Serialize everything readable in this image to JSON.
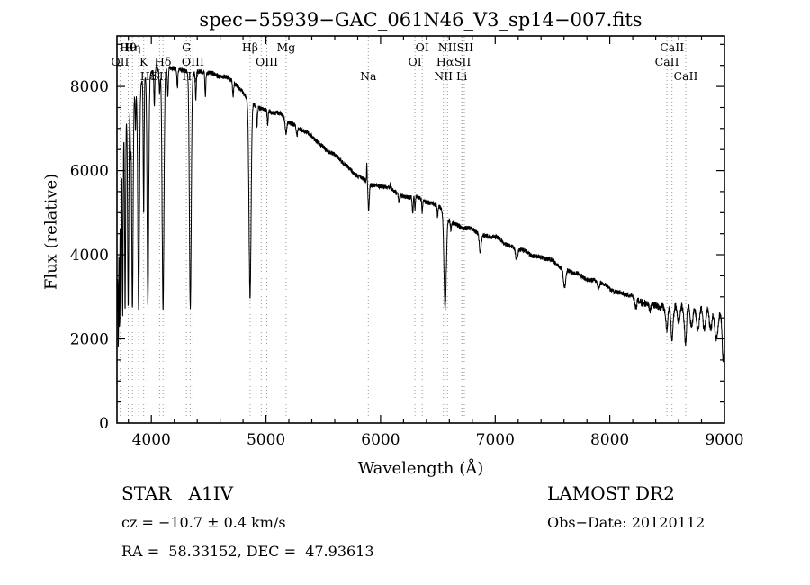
{
  "chart_data": {
    "type": "line",
    "title": "spec−55939−GAC_061N46_V3_sp14−007.fits",
    "xlabel": "Wavelength (Å)",
    "ylabel": "Flux (relative)",
    "xlim": [
      3700,
      9000
    ],
    "ylim": [
      0,
      9200
    ],
    "xticks": [
      4000,
      5000,
      6000,
      7000,
      8000,
      9000
    ],
    "yticks": [
      0,
      2000,
      4000,
      6000,
      8000
    ],
    "x_minor_step": 200,
    "y_minor_step": 500,
    "grid": false,
    "legend": "none",
    "markers": [
      3727,
      3798,
      3835,
      3889,
      3933,
      3970,
      4072,
      4102,
      4305,
      4340,
      4363,
      4861,
      4959,
      5007,
      5175,
      5893,
      6300,
      6363,
      6548,
      6563,
      6583,
      6708,
      6716,
      6731,
      8498,
      8542,
      8662
    ],
    "line_labels": [
      {
        "t": "Hθ",
        "wl": 3798,
        "r": 0
      },
      {
        "t": "Hη",
        "wl": 3835,
        "r": 0
      },
      {
        "t": "G",
        "wl": 4305,
        "r": 0
      },
      {
        "t": "Hβ",
        "wl": 4861,
        "r": 0
      },
      {
        "t": "Mg",
        "wl": 5175,
        "r": 0
      },
      {
        "t": "OI",
        "wl": 6363,
        "r": 0
      },
      {
        "t": "NII",
        "wl": 6583,
        "r": 0
      },
      {
        "t": "SII",
        "wl": 6737,
        "r": 0
      },
      {
        "t": "CaII",
        "wl": 8542,
        "r": 0
      },
      {
        "t": "OII",
        "wl": 3727,
        "r": 1
      },
      {
        "t": "K",
        "wl": 3933,
        "r": 1
      },
      {
        "t": "Hδ",
        "wl": 4102,
        "r": 1
      },
      {
        "t": "OIII",
        "wl": 4363,
        "r": 1
      },
      {
        "t": "OIII",
        "wl": 5007,
        "r": 1
      },
      {
        "t": "OI",
        "wl": 6300,
        "r": 1
      },
      {
        "t": "Hα",
        "wl": 6563,
        "r": 1
      },
      {
        "t": "SII",
        "wl": 6716,
        "r": 1
      },
      {
        "t": "CaII",
        "wl": 8498,
        "r": 1
      },
      {
        "t": "Hε",
        "wl": 3970,
        "r": 2
      },
      {
        "t": "SII",
        "wl": 4072,
        "r": 2
      },
      {
        "t": "Hγ",
        "wl": 4340,
        "r": 2
      },
      {
        "t": "Na",
        "wl": 5893,
        "r": 2
      },
      {
        "t": "NII",
        "wl": 6548,
        "r": 2
      },
      {
        "t": "Li",
        "wl": 6708,
        "r": 2
      },
      {
        "t": "CaII",
        "wl": 8662,
        "r": 2
      }
    ],
    "continuum": [
      [
        3700,
        2600
      ],
      [
        3715,
        5600
      ],
      [
        3760,
        6900
      ],
      [
        3800,
        7400
      ],
      [
        3850,
        7800
      ],
      [
        3900,
        8050
      ],
      [
        3950,
        8200
      ],
      [
        4000,
        8300
      ],
      [
        4100,
        8400
      ],
      [
        4250,
        8420
      ],
      [
        4400,
        8350
      ],
      [
        4550,
        8280
      ],
      [
        4700,
        8120
      ],
      [
        4800,
        7900
      ],
      [
        4900,
        7550
      ],
      [
        5000,
        7450
      ],
      [
        5100,
        7350
      ],
      [
        5200,
        7120
      ],
      [
        5300,
        7000
      ],
      [
        5400,
        6820
      ],
      [
        5500,
        6600
      ],
      [
        5600,
        6350
      ],
      [
        5700,
        6100
      ],
      [
        5800,
        5850
      ],
      [
        5900,
        5680
      ],
      [
        6000,
        5680
      ],
      [
        6100,
        5560
      ],
      [
        6200,
        5380
      ],
      [
        6300,
        5330
      ],
      [
        6400,
        5250
      ],
      [
        6500,
        5200
      ],
      [
        6600,
        4850
      ],
      [
        6700,
        4680
      ],
      [
        6800,
        4560
      ],
      [
        6900,
        4440
      ],
      [
        7000,
        4400
      ],
      [
        7100,
        4280
      ],
      [
        7200,
        4160
      ],
      [
        7300,
        4020
      ],
      [
        7400,
        3920
      ],
      [
        7500,
        3810
      ],
      [
        7600,
        3680
      ],
      [
        7700,
        3570
      ],
      [
        7800,
        3460
      ],
      [
        7900,
        3360
      ],
      [
        8000,
        3150
      ],
      [
        8100,
        3080
      ],
      [
        8200,
        3000
      ],
      [
        8300,
        2900
      ],
      [
        8400,
        2800
      ],
      [
        8500,
        2650
      ],
      [
        8600,
        2560
      ],
      [
        8700,
        2520
      ],
      [
        8800,
        2500
      ],
      [
        8900,
        2480
      ],
      [
        8960,
        2430
      ],
      [
        9000,
        2400
      ]
    ],
    "absorption_lines": [
      [
        3712,
        3200,
        3
      ],
      [
        3722,
        3500,
        3
      ],
      [
        3734,
        3800,
        3.5
      ],
      [
        3750,
        4000,
        3.5
      ],
      [
        3771,
        4300,
        4
      ],
      [
        3798,
        4650,
        5
      ],
      [
        3819,
        1100,
        3
      ],
      [
        3835,
        4950,
        6
      ],
      [
        3862,
        900,
        3
      ],
      [
        3889,
        5250,
        7
      ],
      [
        3933,
        3200,
        4
      ],
      [
        3970,
        5450,
        7
      ],
      [
        4026,
        800,
        4
      ],
      [
        4072,
        550,
        4
      ],
      [
        4102,
        5650,
        8
      ],
      [
        4144,
        650,
        4
      ],
      [
        4227,
        450,
        4
      ],
      [
        4340,
        5600,
        8
      ],
      [
        4388,
        650,
        4
      ],
      [
        4471,
        550,
        4
      ],
      [
        4713,
        350,
        4
      ],
      [
        4861,
        4650,
        9
      ],
      [
        4922,
        450,
        4
      ],
      [
        5015,
        350,
        4
      ],
      [
        5175,
        330,
        7
      ],
      [
        5270,
        220,
        5
      ],
      [
        5896,
        620,
        5
      ],
      [
        6160,
        220,
        4
      ],
      [
        6280,
        420,
        4
      ],
      [
        6300,
        330,
        3.5
      ],
      [
        6363,
        280,
        3.5
      ],
      [
        6497,
        280,
        4
      ],
      [
        6563,
        2250,
        10
      ],
      [
        6613,
        180,
        4
      ],
      [
        6870,
        440,
        8
      ],
      [
        7186,
        240,
        9
      ],
      [
        7605,
        430,
        10
      ],
      [
        7900,
        170,
        8
      ],
      [
        8227,
        210,
        8
      ],
      [
        8350,
        190,
        6
      ],
      [
        8498,
        420,
        7
      ],
      [
        8542,
        520,
        7
      ],
      [
        8662,
        520,
        7
      ],
      [
        8920,
        430,
        10
      ],
      [
        8988,
        650,
        8
      ]
    ],
    "emission_spikes": [
      [
        4046,
        250,
        2.5
      ],
      [
        5880,
        430,
        2.5
      ],
      [
        6085,
        170,
        2.5
      ]
    ],
    "noise_amp": 55,
    "fringe": {
      "start": 8390,
      "period": 56,
      "max_amp": 230,
      "ramp": 0.8
    }
  },
  "footer": {
    "class_label": "STAR   A1IV",
    "survey": "LAMOST DR2",
    "cz": "cz = −10.7 ± 0.4 km/s",
    "obs_date": "Obs−Date: 20120112",
    "radec": "RA =  58.33152, DEC =  47.93613"
  }
}
